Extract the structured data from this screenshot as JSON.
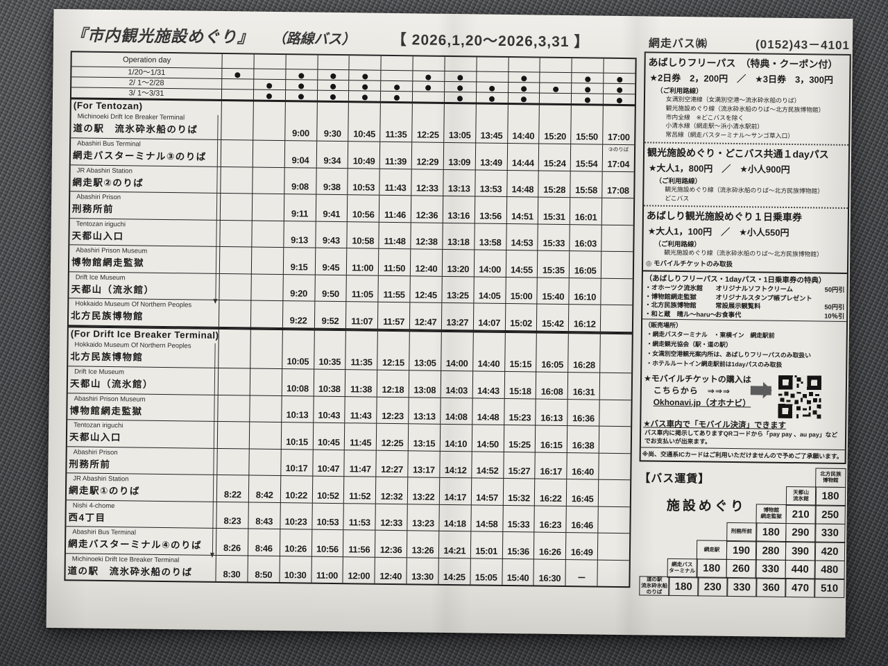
{
  "page": {
    "title_main": "『市内観光施設めぐり』",
    "title_sub": "（路線バス）",
    "title_period": "【 2026,1,20～2026,3,31 】"
  },
  "operation": {
    "header": "Operation day",
    "rows": [
      {
        "label": "1/20～1/31",
        "dots": [
          1,
          0,
          1,
          1,
          1,
          0,
          1,
          1,
          0,
          1,
          0,
          1,
          1
        ]
      },
      {
        "label": "2/ 1～2/28",
        "dots": [
          0,
          1,
          1,
          1,
          1,
          1,
          1,
          1,
          1,
          1,
          1,
          1,
          1
        ]
      },
      {
        "label": "3/ 1～3/31",
        "dots": [
          0,
          1,
          1,
          1,
          1,
          1,
          0,
          1,
          1,
          1,
          0,
          1,
          1
        ]
      }
    ]
  },
  "sections": [
    {
      "title": "(For Tentozan)",
      "rows": [
        {
          "en": "Michinoeki Drift Ice Breaker Terminal",
          "ja": "道の駅　流氷砕氷船のりば",
          "times": [
            "",
            "",
            "9:00",
            "9:30",
            "10:45",
            "11:35",
            "12:25",
            "13:05",
            "13:45",
            "14:40",
            "15:20",
            "15:50",
            "17:00"
          ]
        },
        {
          "en": "Abashiri Bus Terminal",
          "ja": "網走バスターミナル③のりば",
          "note": "③のりば",
          "note_col": 12,
          "times": [
            "",
            "",
            "9:04",
            "9:34",
            "10:49",
            "11:39",
            "12:29",
            "13:09",
            "13:49",
            "14:44",
            "15:24",
            "15:54",
            "17:04"
          ]
        },
        {
          "en": "JR Abashiri Station",
          "ja": "網走駅②のりば",
          "times": [
            "",
            "",
            "9:08",
            "9:38",
            "10:53",
            "11:43",
            "12:33",
            "13:13",
            "13:53",
            "14:48",
            "15:28",
            "15:58",
            "17:08"
          ]
        },
        {
          "en": "Abashiri Prison",
          "ja": "刑務所前",
          "times": [
            "",
            "",
            "9:11",
            "9:41",
            "10:56",
            "11:46",
            "12:36",
            "13:16",
            "13:56",
            "14:51",
            "15:31",
            "16:01",
            ""
          ]
        },
        {
          "en": "Tentozan iriguchi",
          "ja": "天都山入口",
          "times": [
            "",
            "",
            "9:13",
            "9:43",
            "10:58",
            "11:48",
            "12:38",
            "13:18",
            "13:58",
            "14:53",
            "15:33",
            "16:03",
            ""
          ]
        },
        {
          "en": "Abashiri Prison Museum",
          "ja": "博物館網走監獄",
          "times": [
            "",
            "",
            "9:15",
            "9:45",
            "11:00",
            "11:50",
            "12:40",
            "13:20",
            "14:00",
            "14:55",
            "15:35",
            "16:05",
            ""
          ]
        },
        {
          "en": "Drift Ice Museum",
          "ja": "天都山（流氷館）",
          "times": [
            "",
            "",
            "9:20",
            "9:50",
            "11:05",
            "11:55",
            "12:45",
            "13:25",
            "14:05",
            "15:00",
            "15:40",
            "16:10",
            ""
          ]
        },
        {
          "en": "Hokkaido Museum Of Northern Peoples",
          "ja": "北方民族博物館",
          "times": [
            "",
            "",
            "9:22",
            "9:52",
            "11:07",
            "11:57",
            "12:47",
            "13:27",
            "14:07",
            "15:02",
            "15:42",
            "16:12",
            ""
          ]
        }
      ]
    },
    {
      "title": "(For Drift Ice Breaker Terminal)",
      "rows": [
        {
          "en": "Hokkaido Museum Of Northern Peoples",
          "ja": "北方民族博物館",
          "times": [
            "",
            "",
            "10:05",
            "10:35",
            "11:35",
            "12:15",
            "13:05",
            "14:00",
            "14:40",
            "15:15",
            "16:05",
            "16:28",
            ""
          ]
        },
        {
          "en": "Drift Ice Museum",
          "ja": "天都山（流氷館）",
          "times": [
            "",
            "",
            "10:08",
            "10:38",
            "11:38",
            "12:18",
            "13:08",
            "14:03",
            "14:43",
            "15:18",
            "16:08",
            "16:31",
            ""
          ]
        },
        {
          "en": "Abashiri Prison Museum",
          "ja": "博物館網走監獄",
          "times": [
            "",
            "",
            "10:13",
            "10:43",
            "11:43",
            "12:23",
            "13:13",
            "14:08",
            "14:48",
            "15:23",
            "16:13",
            "16:36",
            ""
          ]
        },
        {
          "en": "Tentozan iriguchi",
          "ja": "天都山入口",
          "times": [
            "",
            "",
            "10:15",
            "10:45",
            "11:45",
            "12:25",
            "13:15",
            "14:10",
            "14:50",
            "15:25",
            "16:15",
            "16:38",
            ""
          ]
        },
        {
          "en": "Abashiri Prison",
          "ja": "刑務所前",
          "times": [
            "",
            "",
            "10:17",
            "10:47",
            "11:47",
            "12:27",
            "13:17",
            "14:12",
            "14:52",
            "15:27",
            "16:17",
            "16:40",
            ""
          ]
        },
        {
          "en": "JR Abashiri Station",
          "ja": "網走駅①のりば",
          "times": [
            "8:22",
            "8:42",
            "10:22",
            "10:52",
            "11:52",
            "12:32",
            "13:22",
            "14:17",
            "14:57",
            "15:32",
            "16:22",
            "16:45",
            ""
          ]
        },
        {
          "en": "Nishi 4-chome",
          "ja": "西4丁目",
          "times": [
            "8:23",
            "8:43",
            "10:23",
            "10:53",
            "11:53",
            "12:33",
            "13:23",
            "14:18",
            "14:58",
            "15:33",
            "16:23",
            "16:46",
            ""
          ]
        },
        {
          "en": "Abashiri Bus Terminal",
          "ja": "網走バスターミナル④のりば",
          "times": [
            "8:26",
            "8:46",
            "10:26",
            "10:56",
            "11:56",
            "12:36",
            "13:26",
            "14:21",
            "15:01",
            "15:36",
            "16:26",
            "16:49",
            ""
          ]
        },
        {
          "en": "Michinoeki Drift Ice Breaker Terminal",
          "ja": "道の駅　流氷砕氷船のりば",
          "times": [
            "8:30",
            "8:50",
            "10:30",
            "11:00",
            "12:00",
            "12:40",
            "13:30",
            "14:25",
            "15:05",
            "15:40",
            "16:30",
            "－",
            ""
          ]
        }
      ]
    }
  ],
  "right": {
    "company": "網走バス㈱",
    "phone": "(0152)43－4101",
    "passes": [
      {
        "name": "あばしりフリーパス　（特典・クーポン付）",
        "price": "★2日券　2，200円　／　★3日券　3，300円",
        "routes_label": "（ご利用路線）",
        "routes": [
          "女満別空港線（女満別空港～流氷砕氷船のりば）",
          "観光施設めぐり線（流氷砕氷船のりば～北方民族博物館）",
          "市内全線　※どこバスを除く",
          "小清水線（網走駅～浜小清水駅前）",
          "常呂線（網走バスターミナル～サンゴ草入口）"
        ],
        "note": ""
      },
      {
        "name": "観光施設めぐり・どこバス共通１dayパス",
        "price": "★大人1，800円　／　★小人900円",
        "routes_label": "（ご利用路線）",
        "routes": [
          "観光施設めぐり線（流氷砕氷船のりば～北方民族博物館）",
          "どこバス"
        ],
        "note": ""
      },
      {
        "name": "あばしり観光施設めぐり１日乗車券",
        "price": "★大人1，100円　／　★小人550円",
        "routes_label": "（ご利用路線）",
        "routes": [
          "観光施設めぐり線（流氷砕氷船のりば～北方民族博物館）"
        ],
        "note": "◎ モバイルチケットのみ取扱"
      }
    ],
    "benefits": {
      "title": "（あばしりフリーパス・1dayパス・1日乗車券の特典）",
      "items": [
        {
          "place": "・オホーツク流氷館",
          "benefit": "オリジナルソフトクリーム",
          "discount": "50円引"
        },
        {
          "place": "・博物館網走監獄",
          "benefit": "オリジナルスタンプ帳プレゼント",
          "discount": ""
        },
        {
          "place": "・北方民族博物館",
          "benefit": "常設展示観覧料",
          "discount": "50円引"
        },
        {
          "place": "・和と蔵　晴ル～haru～",
          "benefit": "お食事代",
          "discount": "10％引"
        }
      ]
    },
    "sales": {
      "title": "（販売場所）",
      "lines": [
        "・網走バスターミナル　・東横イン　網走駅前",
        "・網走観光協会（駅・道の駅）",
        "・女満別空港観光案内所は、あばしりフリーパスのみ取扱い",
        "・ホテルルートイン網走駅前は1dayパスのみ取扱"
      ]
    },
    "mobile": {
      "line1": "★モバイルチケットの購入は",
      "line2": "こちらから　⇒⇒⇒",
      "line3": "Okhonavi.jp（オホナビ）",
      "pay_title": "★バス車内で「モバイル決済」できます",
      "pay_body": "バス車内に掲示してありますQRコードから「pay pay 、au pay」などでお支払いが出来ます。",
      "pay_note": "※尚、交通系ICカードはご利用いただけませんので予めご了承願います。"
    },
    "fare": {
      "title": "【バス運賃】",
      "label": "施設めぐり",
      "rows": [
        [
          "北方民族\n博物館"
        ],
        [
          "天都山\n流氷館",
          "180"
        ],
        [
          "博物館\n網走監獄",
          "210",
          "250"
        ],
        [
          "刑務所前",
          "180",
          "290",
          "330"
        ],
        [
          "網走駅",
          "190",
          "280",
          "390",
          "420"
        ],
        [
          "網走バス\nターミナル",
          "180",
          "260",
          "330",
          "440",
          "480"
        ],
        [
          "道の駅\n流氷砕氷船\nのりば",
          "180",
          "230",
          "330",
          "360",
          "470",
          "510"
        ]
      ]
    }
  }
}
